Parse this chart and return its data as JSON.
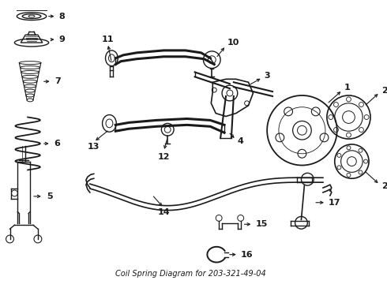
{
  "title": "Coil Spring Diagram for 203-321-49-04",
  "bg_color": "#ffffff",
  "line_color": "#1a1a1a",
  "figsize": [
    4.9,
    3.6
  ],
  "dpi": 100
}
